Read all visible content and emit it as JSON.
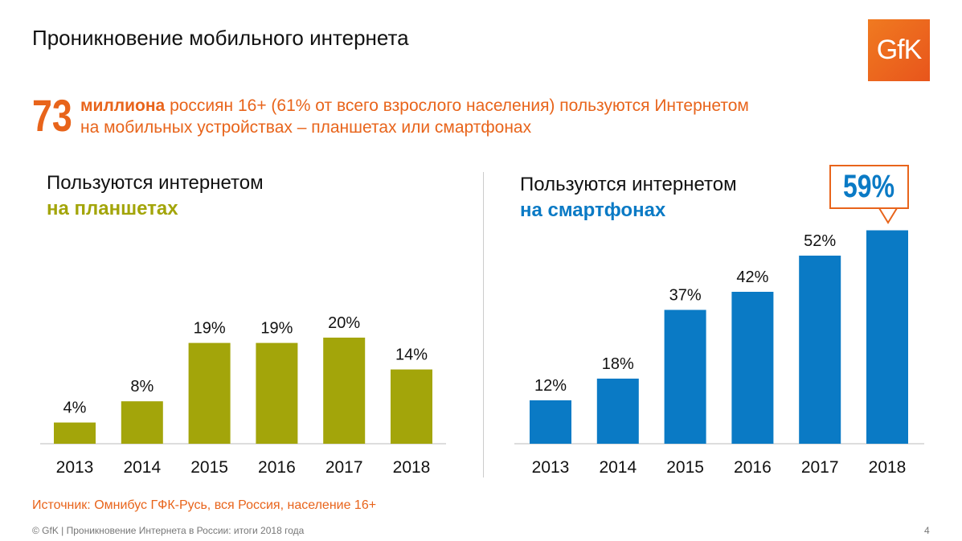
{
  "title": "Проникновение мобильного интернета",
  "logo": "GfK",
  "headline": {
    "number": "73",
    "bold": "миллиона",
    "line1": " россиян 16+ (61% от всего взрослого населения) пользуются Интернетом",
    "line2": "на мобильных устройствах – планшетах или смартфонах"
  },
  "colors": {
    "accent": "#e8641b",
    "tablet": "#a3a50a",
    "smartphone": "#0a7ac5"
  },
  "chart_data": [
    {
      "type": "bar",
      "title": "Пользуются интернетом",
      "subtitle": "на планшетах",
      "categories": [
        "2013",
        "2014",
        "2015",
        "2016",
        "2017",
        "2018"
      ],
      "values": [
        4,
        8,
        19,
        19,
        20,
        14
      ],
      "labels": [
        "4%",
        "8%",
        "19%",
        "19%",
        "20%",
        "14%"
      ],
      "unit": "%",
      "grid": false
    },
    {
      "type": "bar",
      "title": "Пользуются интернетом",
      "subtitle": "на смартфонах",
      "categories": [
        "2013",
        "2014",
        "2015",
        "2016",
        "2017",
        "2018"
      ],
      "values": [
        12,
        18,
        37,
        42,
        52,
        59
      ],
      "labels": [
        "12%",
        "18%",
        "37%",
        "42%",
        "52%",
        ""
      ],
      "unit": "%",
      "grid": false,
      "callout": "59%"
    }
  ],
  "source": "Источник: Омнибус ГФК-Русь, вся Россия, население 16+",
  "footer": "© GfK | Проникновение Интернета в России: итоги 2018 года",
  "page": "4"
}
